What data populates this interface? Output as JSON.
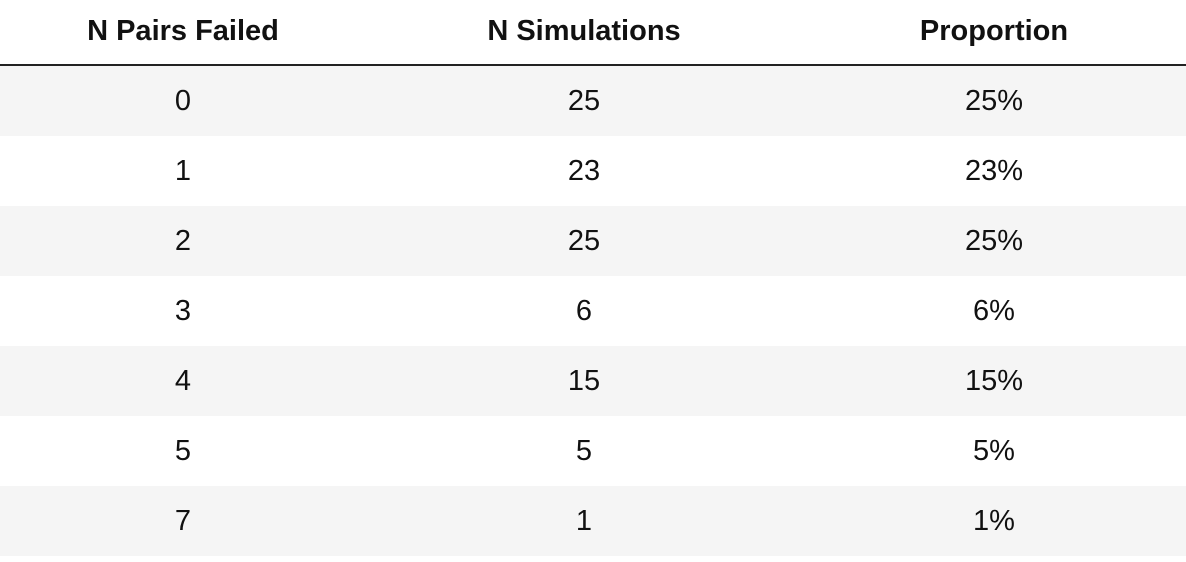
{
  "chart_data": {
    "type": "table",
    "columns": [
      "N Pairs Failed",
      "N Simulations",
      "Proportion"
    ],
    "rows": [
      [
        "0",
        "25",
        "25%"
      ],
      [
        "1",
        "23",
        "23%"
      ],
      [
        "2",
        "25",
        "25%"
      ],
      [
        "3",
        "6",
        "6%"
      ],
      [
        "4",
        "15",
        "15%"
      ],
      [
        "5",
        "5",
        "5%"
      ],
      [
        "7",
        "1",
        "1%"
      ]
    ]
  }
}
